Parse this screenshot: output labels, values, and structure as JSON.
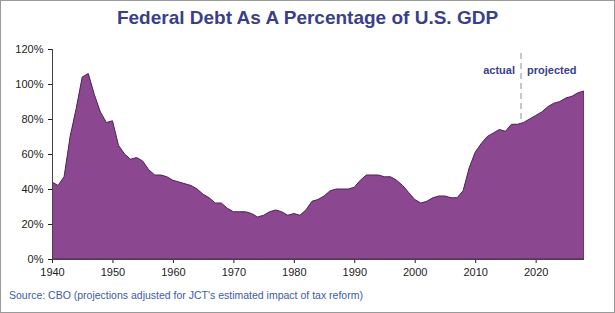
{
  "chart_data": {
    "type": "area",
    "title": "Federal Debt As A Percentage of U.S. GDP",
    "caption": "Source: CBO (projections adjusted for JCT's estimated impact of tax reform)",
    "x": [
      1940,
      1941,
      1942,
      1943,
      1944,
      1945,
      1946,
      1947,
      1948,
      1949,
      1950,
      1951,
      1952,
      1953,
      1954,
      1955,
      1956,
      1957,
      1958,
      1959,
      1960,
      1961,
      1962,
      1963,
      1964,
      1965,
      1966,
      1967,
      1968,
      1969,
      1970,
      1971,
      1972,
      1973,
      1974,
      1975,
      1976,
      1977,
      1978,
      1979,
      1980,
      1981,
      1982,
      1983,
      1984,
      1985,
      1986,
      1987,
      1988,
      1989,
      1990,
      1991,
      1992,
      1993,
      1994,
      1995,
      1996,
      1997,
      1998,
      1999,
      2000,
      2001,
      2002,
      2003,
      2004,
      2005,
      2006,
      2007,
      2008,
      2009,
      2010,
      2011,
      2012,
      2013,
      2014,
      2015,
      2016,
      2017,
      2018,
      2019,
      2020,
      2021,
      2022,
      2023,
      2024,
      2025,
      2026,
      2027,
      2028
    ],
    "values": [
      44,
      42,
      47,
      70,
      86,
      104,
      106,
      94,
      84,
      78,
      79,
      65,
      60,
      57,
      58,
      56,
      51,
      48,
      48,
      47,
      45,
      44,
      43,
      42,
      40,
      37,
      35,
      32,
      32,
      29,
      27,
      27,
      27,
      26,
      24,
      25,
      27,
      28,
      27,
      25,
      26,
      25,
      28,
      33,
      34,
      36,
      39,
      40,
      40,
      40,
      41,
      45,
      48,
      48,
      48,
      47,
      47,
      45,
      42,
      38,
      34,
      32,
      33,
      35,
      36,
      36,
      35,
      35,
      39,
      52,
      61,
      66,
      70,
      72,
      74,
      73,
      77,
      77,
      78,
      80,
      82,
      84,
      87,
      89,
      90,
      92,
      93,
      95,
      96
    ],
    "color": "#8b4790",
    "xlim": [
      1940,
      2028
    ],
    "xticks": [
      1940,
      1950,
      1960,
      1970,
      1980,
      1990,
      2000,
      2010,
      2020
    ],
    "ylim": [
      0,
      120
    ],
    "yticks": [
      {
        "value": 0,
        "label": "0%"
      },
      {
        "value": 20,
        "label": "20%"
      },
      {
        "value": 40,
        "label": "40%"
      },
      {
        "value": 60,
        "label": "60%"
      },
      {
        "value": 80,
        "label": "80%"
      },
      {
        "value": 100,
        "label": "100%"
      },
      {
        "value": 120,
        "label": "120%"
      }
    ],
    "grid": false,
    "divider": {
      "x": 2017.5,
      "left_label": "actual",
      "right_label": "projected"
    }
  }
}
